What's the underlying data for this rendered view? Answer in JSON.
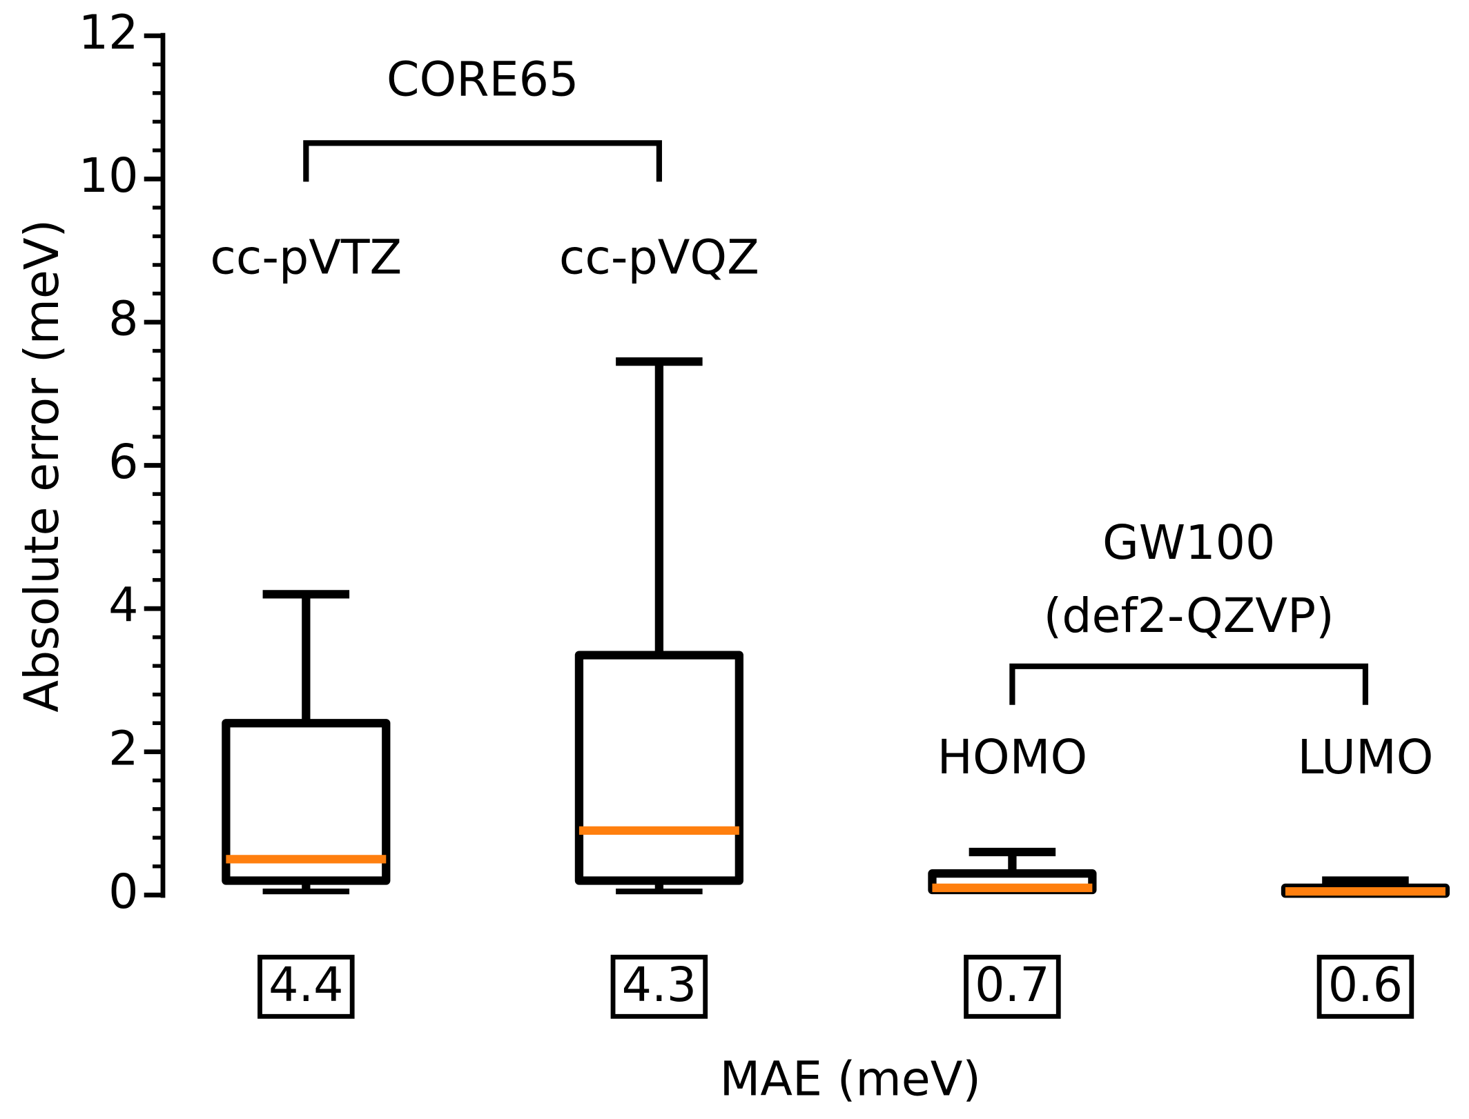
{
  "chart_data": {
    "type": "box",
    "ylabel": "Absolute error (meV)",
    "xlabel": "MAE (meV)",
    "categories": [
      "cc-pVTZ",
      "cc-pVQZ",
      "HOMO",
      "LUMO"
    ],
    "boxes": [
      {
        "whislo": 0.05,
        "q1": 0.2,
        "med": 0.5,
        "q3": 2.4,
        "whishi": 4.2
      },
      {
        "whislo": 0.05,
        "q1": 0.2,
        "med": 0.9,
        "q3": 3.35,
        "whishi": 7.45
      },
      {
        "whislo": 0.07,
        "q1": 0.07,
        "med": 0.1,
        "q3": 0.3,
        "whishi": 0.6
      },
      {
        "whislo": 0.02,
        "q1": 0.02,
        "med": 0.05,
        "q3": 0.1,
        "whishi": 0.2
      }
    ],
    "mae": [
      "4.4",
      "4.3",
      "0.7",
      "0.6"
    ],
    "groups": [
      {
        "label": [
          "CORE65"
        ]
      },
      {
        "label": [
          "GW100",
          "(def2-QZVP)"
        ]
      }
    ],
    "box_color": "#000000",
    "median_color": "#ff7f0e",
    "ylim": [
      0,
      12
    ],
    "yticks": [
      0,
      2,
      4,
      6,
      8,
      10,
      12
    ]
  }
}
